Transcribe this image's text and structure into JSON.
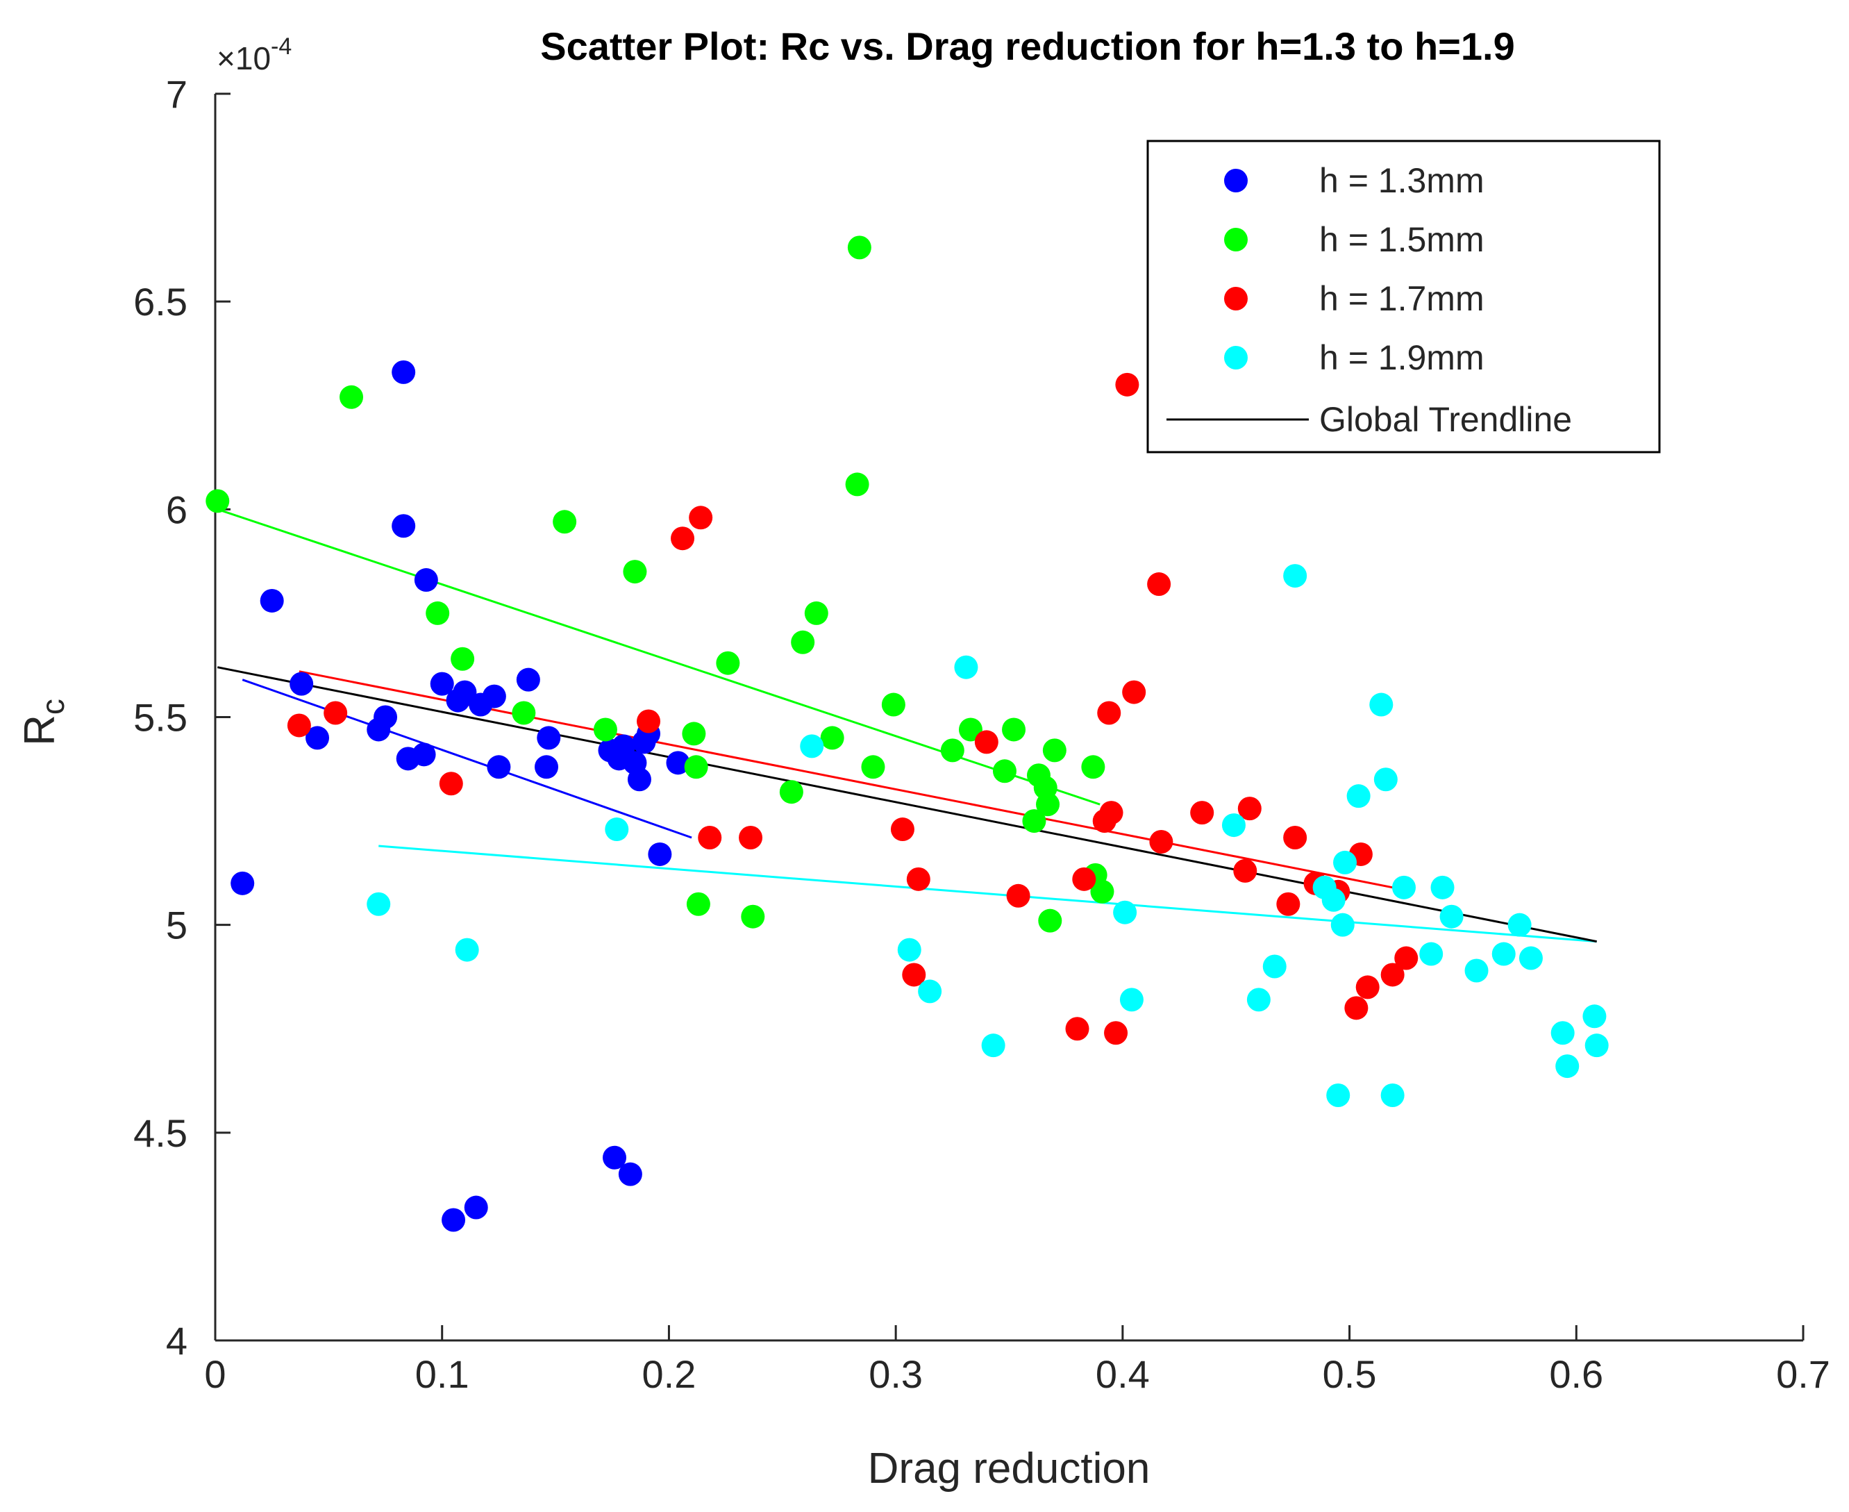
{
  "chart_data": {
    "type": "scatter",
    "title": "Scatter Plot: Rc vs. Drag reduction for h=1.3 to h=1.9",
    "xlabel": "Drag reduction",
    "ylabel_main": "R",
    "ylabel_sub": "c",
    "y_exponent_base": "×10",
    "y_exponent_power": "-4",
    "xlim": [
      0,
      0.7
    ],
    "ylim": [
      4,
      7
    ],
    "xticks": [
      0,
      0.1,
      0.2,
      0.3,
      0.4,
      0.5,
      0.6,
      0.7
    ],
    "xtick_labels": [
      "0",
      "0.1",
      "0.2",
      "0.3",
      "0.4",
      "0.5",
      "0.6",
      "0.7"
    ],
    "yticks": [
      4,
      4.5,
      5,
      5.5,
      6,
      6.5,
      7
    ],
    "ytick_labels": [
      "4",
      "4.5",
      "5",
      "5.5",
      "6",
      "6.5",
      "7"
    ],
    "legend_position": "top-right",
    "series": [
      {
        "name": "h = 1.3mm",
        "color": "#0000ff",
        "points": [
          [
            0.012,
            5.1
          ],
          [
            0.025,
            5.78
          ],
          [
            0.038,
            5.58
          ],
          [
            0.045,
            5.45
          ],
          [
            0.072,
            5.47
          ],
          [
            0.075,
            5.5
          ],
          [
            0.083,
            6.33
          ],
          [
            0.083,
            5.96
          ],
          [
            0.085,
            5.4
          ],
          [
            0.092,
            5.41
          ],
          [
            0.093,
            5.83
          ],
          [
            0.1,
            5.58
          ],
          [
            0.105,
            4.29
          ],
          [
            0.107,
            5.54
          ],
          [
            0.11,
            5.56
          ],
          [
            0.115,
            4.32
          ],
          [
            0.117,
            5.53
          ],
          [
            0.123,
            5.55
          ],
          [
            0.125,
            5.38
          ],
          [
            0.138,
            5.59
          ],
          [
            0.146,
            5.38
          ],
          [
            0.147,
            5.45
          ],
          [
            0.174,
            5.42
          ],
          [
            0.176,
            4.44
          ],
          [
            0.178,
            5.4
          ],
          [
            0.18,
            5.43
          ],
          [
            0.183,
            4.4
          ],
          [
            0.185,
            5.39
          ],
          [
            0.187,
            5.35
          ],
          [
            0.189,
            5.44
          ],
          [
            0.191,
            5.46
          ],
          [
            0.196,
            5.17
          ],
          [
            0.204,
            5.39
          ]
        ],
        "trend": [
          [
            0.012,
            5.59
          ],
          [
            0.21,
            5.21
          ]
        ]
      },
      {
        "name": "h = 1.5mm",
        "color": "#00ff00",
        "points": [
          [
            0.001,
            6.02
          ],
          [
            0.06,
            6.27
          ],
          [
            0.098,
            5.75
          ],
          [
            0.109,
            5.64
          ],
          [
            0.136,
            5.51
          ],
          [
            0.154,
            5.97
          ],
          [
            0.172,
            5.47
          ],
          [
            0.185,
            5.85
          ],
          [
            0.211,
            5.46
          ],
          [
            0.212,
            5.38
          ],
          [
            0.213,
            5.05
          ],
          [
            0.226,
            5.63
          ],
          [
            0.237,
            5.02
          ],
          [
            0.254,
            5.32
          ],
          [
            0.259,
            5.68
          ],
          [
            0.265,
            5.75
          ],
          [
            0.272,
            5.45
          ],
          [
            0.283,
            6.06
          ],
          [
            0.284,
            6.63
          ],
          [
            0.29,
            5.38
          ],
          [
            0.299,
            5.53
          ],
          [
            0.325,
            5.42
          ],
          [
            0.333,
            5.47
          ],
          [
            0.348,
            5.37
          ],
          [
            0.352,
            5.47
          ],
          [
            0.361,
            5.25
          ],
          [
            0.363,
            5.36
          ],
          [
            0.366,
            5.33
          ],
          [
            0.367,
            5.29
          ],
          [
            0.368,
            5.01
          ],
          [
            0.37,
            5.42
          ],
          [
            0.387,
            5.38
          ],
          [
            0.388,
            5.12
          ],
          [
            0.391,
            5.08
          ]
        ],
        "trend": [
          [
            0.001,
            6.0
          ],
          [
            0.39,
            5.29
          ]
        ]
      },
      {
        "name": "h = 1.7mm",
        "color": "#ff0000",
        "points": [
          [
            0.037,
            5.48
          ],
          [
            0.053,
            5.51
          ],
          [
            0.104,
            5.34
          ],
          [
            0.191,
            5.49
          ],
          [
            0.206,
            5.93
          ],
          [
            0.214,
            5.98
          ],
          [
            0.218,
            5.21
          ],
          [
            0.236,
            5.21
          ],
          [
            0.303,
            5.23
          ],
          [
            0.308,
            4.88
          ],
          [
            0.31,
            5.11
          ],
          [
            0.34,
            5.44
          ],
          [
            0.354,
            5.07
          ],
          [
            0.38,
            4.75
          ],
          [
            0.383,
            5.11
          ],
          [
            0.392,
            5.25
          ],
          [
            0.394,
            5.51
          ],
          [
            0.395,
            5.27
          ],
          [
            0.397,
            4.74
          ],
          [
            0.402,
            6.3
          ],
          [
            0.405,
            5.56
          ],
          [
            0.416,
            5.82
          ],
          [
            0.417,
            5.2
          ],
          [
            0.435,
            5.27
          ],
          [
            0.454,
            5.13
          ],
          [
            0.456,
            5.28
          ],
          [
            0.473,
            5.05
          ],
          [
            0.476,
            5.21
          ],
          [
            0.485,
            5.1
          ],
          [
            0.495,
            5.08
          ],
          [
            0.503,
            4.8
          ],
          [
            0.505,
            5.17
          ],
          [
            0.508,
            4.85
          ],
          [
            0.519,
            4.88
          ],
          [
            0.525,
            4.92
          ]
        ],
        "trend": [
          [
            0.037,
            5.61
          ],
          [
            0.519,
            5.09
          ]
        ]
      },
      {
        "name": "h = 1.9mm",
        "color": "#00ffff",
        "points": [
          [
            0.072,
            5.05
          ],
          [
            0.111,
            4.94
          ],
          [
            0.177,
            5.23
          ],
          [
            0.263,
            5.43
          ],
          [
            0.306,
            4.94
          ],
          [
            0.315,
            4.84
          ],
          [
            0.331,
            5.62
          ],
          [
            0.343,
            4.71
          ],
          [
            0.401,
            5.03
          ],
          [
            0.404,
            4.82
          ],
          [
            0.449,
            5.24
          ],
          [
            0.46,
            4.82
          ],
          [
            0.467,
            4.9
          ],
          [
            0.476,
            5.84
          ],
          [
            0.489,
            5.09
          ],
          [
            0.493,
            5.06
          ],
          [
            0.495,
            4.59
          ],
          [
            0.497,
            5.0
          ],
          [
            0.498,
            5.15
          ],
          [
            0.504,
            5.31
          ],
          [
            0.514,
            5.53
          ],
          [
            0.516,
            5.35
          ],
          [
            0.519,
            4.59
          ],
          [
            0.524,
            5.09
          ],
          [
            0.536,
            4.93
          ],
          [
            0.541,
            5.09
          ],
          [
            0.545,
            5.02
          ],
          [
            0.556,
            4.89
          ],
          [
            0.568,
            4.93
          ],
          [
            0.575,
            5.0
          ],
          [
            0.58,
            4.92
          ],
          [
            0.594,
            4.74
          ],
          [
            0.596,
            4.66
          ],
          [
            0.608,
            4.78
          ],
          [
            0.609,
            4.71
          ]
        ],
        "trend": [
          [
            0.072,
            5.19
          ],
          [
            0.609,
            4.96
          ]
        ]
      }
    ],
    "global_trendline": {
      "name": "Global Trendline",
      "color": "#000000",
      "points": [
        [
          0.001,
          5.62
        ],
        [
          0.609,
          4.96
        ]
      ]
    }
  }
}
